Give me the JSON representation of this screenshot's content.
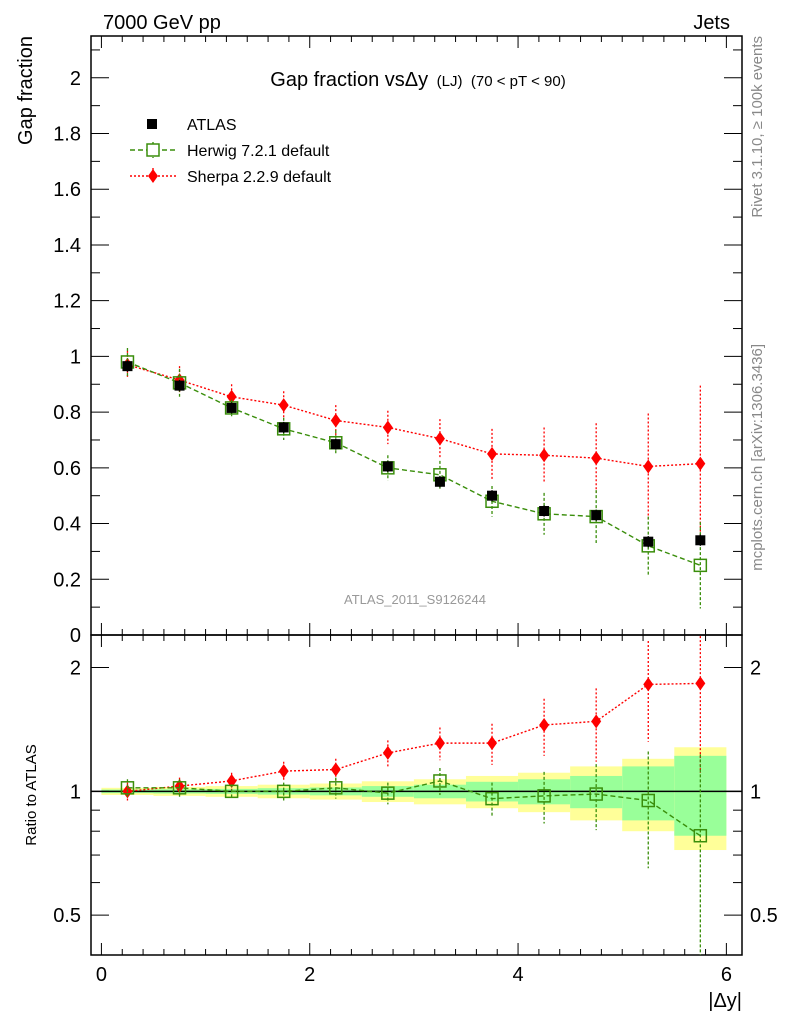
{
  "header": {
    "left": "7000 GeV pp",
    "right": "Jets"
  },
  "side_labels": {
    "rivet": "Rivet 3.1.10, ≥ 100k events",
    "mcplots": "mcplots.cern.ch [arXiv:1306.3436]"
  },
  "title": {
    "main": "Gap fraction vsΔy",
    "sub": "(LJ)",
    "range": "(70 < pT <  90)"
  },
  "watermark": "ATLAS_2011_S9126244",
  "legend": {
    "atlas": "ATLAS",
    "herwig": "Herwig 7.2.1 default",
    "sherpa": "Sherpa 2.2.9 default"
  },
  "axes": {
    "ylabel_top": "Gap fraction",
    "ylabel_bottom": "Ratio to ATLAS",
    "xlabel": "|Δy|"
  },
  "colors": {
    "atlas": "#000000",
    "herwig": "#3a8e0b",
    "sherpa": "#ff0000",
    "band_inner": "#99ff99",
    "band_outer": "#ffff99"
  },
  "chart_data": [
    {
      "type": "scatter",
      "panel": "main",
      "title": "Gap fraction vs Δy (LJ) (70 < pT < 90)",
      "xlabel": "|Δy|",
      "ylabel": "Gap fraction",
      "xlim": [
        -0.1,
        6.15
      ],
      "ylim": [
        0,
        2.15
      ],
      "xticks": [
        0,
        2,
        4,
        6
      ],
      "xtick_labels": [
        "0",
        "2",
        "4",
        "6"
      ],
      "yticks": [
        0,
        0.2,
        0.4,
        0.6,
        0.8,
        1,
        1.2,
        1.4,
        1.6,
        1.8,
        2
      ],
      "ytick_labels": [
        "0",
        "0.2",
        "0.4",
        "0.6",
        "0.8",
        "1",
        "1.2",
        "1.4",
        "1.6",
        "1.8",
        "2"
      ],
      "x": [
        0.25,
        0.75,
        1.25,
        1.75,
        2.25,
        2.75,
        3.25,
        3.75,
        4.25,
        4.75,
        5.25,
        5.75
      ],
      "series": [
        {
          "name": "ATLAS",
          "values": [
            0.965,
            0.895,
            0.815,
            0.745,
            0.685,
            0.605,
            0.55,
            0.5,
            0.445,
            0.43,
            0.335,
            0.34
          ],
          "errors": [
            0.02,
            0.02,
            0.02,
            0.02,
            0.02,
            0.02,
            0.02,
            0.02,
            0.02,
            0.02,
            0.02,
            0.02
          ]
        },
        {
          "name": "Herwig 7.2.1 default",
          "values": [
            0.98,
            0.905,
            0.815,
            0.74,
            0.69,
            0.6,
            0.575,
            0.48,
            0.435,
            0.425,
            0.32,
            0.25
          ],
          "errors": [
            0.05,
            0.05,
            0.03,
            0.04,
            0.045,
            0.045,
            0.05,
            0.055,
            0.075,
            0.095,
            0.105,
            0.155
          ]
        },
        {
          "name": "Sherpa 2.2.9 default",
          "values": [
            0.97,
            0.915,
            0.855,
            0.825,
            0.77,
            0.745,
            0.705,
            0.65,
            0.645,
            0.635,
            0.605,
            0.615
          ],
          "errors": [
            0.05,
            0.05,
            0.045,
            0.05,
            0.055,
            0.06,
            0.07,
            0.09,
            0.1,
            0.125,
            0.19,
            0.28
          ]
        }
      ]
    },
    {
      "type": "scatter",
      "panel": "ratio",
      "xlabel": "|Δy|",
      "ylabel": "Ratio to ATLAS",
      "scale": "log",
      "xlim": [
        -0.1,
        6.15
      ],
      "ylim": [
        0.4,
        2.4
      ],
      "xticks": [
        0,
        2,
        4,
        6
      ],
      "xtick_labels": [
        "0",
        "2",
        "4",
        "6"
      ],
      "yticks": [
        0.5,
        1,
        2
      ],
      "ytick_labels": [
        "0.5",
        "1",
        "2"
      ],
      "x": [
        0.25,
        0.75,
        1.25,
        1.75,
        2.25,
        2.75,
        3.25,
        3.75,
        4.25,
        4.75,
        5.25,
        5.75
      ],
      "bins": [
        [
          0,
          0.5
        ],
        [
          0.5,
          1
        ],
        [
          1,
          1.5
        ],
        [
          1.5,
          2
        ],
        [
          2,
          2.5
        ],
        [
          2.5,
          3
        ],
        [
          3,
          3.5
        ],
        [
          3.5,
          4
        ],
        [
          4,
          4.5
        ],
        [
          4.5,
          5
        ],
        [
          5,
          5.5
        ],
        [
          5.5,
          6
        ]
      ],
      "band_inner": [
        0.01,
        0.012,
        0.014,
        0.018,
        0.022,
        0.03,
        0.038,
        0.055,
        0.07,
        0.09,
        0.15,
        0.22
      ],
      "band_outer": [
        0.02,
        0.025,
        0.03,
        0.038,
        0.045,
        0.058,
        0.07,
        0.09,
        0.11,
        0.15,
        0.2,
        0.28
      ],
      "series": [
        {
          "name": "Herwig 7.2.1 default",
          "values": [
            1.02,
            1.02,
            1.0,
            1.0,
            1.02,
            0.99,
            1.06,
            0.96,
            0.975,
            0.985,
            0.95,
            0.78
          ],
          "errors": [
            0.05,
            0.05,
            0.04,
            0.05,
            0.06,
            0.06,
            0.08,
            0.09,
            0.14,
            0.18,
            0.3,
            0.45
          ]
        },
        {
          "name": "Sherpa 2.2.9 default",
          "values": [
            1.0,
            1.03,
            1.06,
            1.12,
            1.13,
            1.24,
            1.31,
            1.31,
            1.45,
            1.48,
            1.82,
            1.83
          ],
          "errors": [
            0.05,
            0.05,
            0.05,
            0.06,
            0.07,
            0.09,
            0.12,
            0.15,
            0.23,
            0.3,
            0.5,
            0.72
          ]
        }
      ]
    }
  ]
}
